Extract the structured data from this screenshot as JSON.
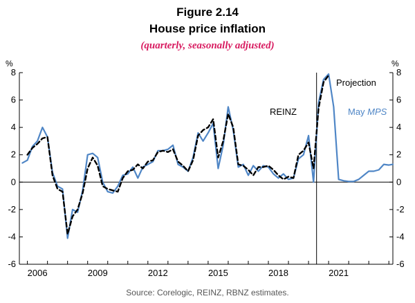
{
  "figure": {
    "label": "Figure 2.14",
    "title": "House price inflation",
    "subtitle": "(quarterly, seasonally adjusted)",
    "source": "Source: Corelogic, REINZ, RBNZ estimates."
  },
  "chart_data": {
    "type": "line",
    "ylabel_left": "%",
    "ylabel_right": "%",
    "ylim": [
      -6,
      8
    ],
    "yticks": [
      -6,
      -4,
      -2,
      0,
      2,
      4,
      6,
      8
    ],
    "xlim": [
      2005.6,
      2024.2
    ],
    "xticks": [
      2006,
      2009,
      2012,
      2015,
      2018,
      2021
    ],
    "grid": false,
    "projection_start": 2020.4,
    "annotations": {
      "projection": "Projection",
      "reinz": "REINZ",
      "mps": "May ",
      "mps_italic": "MPS"
    },
    "colors": {
      "mps_series": "#4f86c6",
      "reinz_series": "#000000",
      "subtitle": "#d81b60"
    },
    "series": [
      {
        "name": "May MPS",
        "style": "solid",
        "points": [
          [
            2005.75,
            1.4
          ],
          [
            2006.0,
            1.6
          ],
          [
            2006.25,
            2.6
          ],
          [
            2006.5,
            3.0
          ],
          [
            2006.75,
            4.0
          ],
          [
            2007.0,
            3.3
          ],
          [
            2007.25,
            0.7
          ],
          [
            2007.5,
            -0.3
          ],
          [
            2007.75,
            -0.5
          ],
          [
            2008.0,
            -4.1
          ],
          [
            2008.25,
            -2.0
          ],
          [
            2008.5,
            -2.2
          ],
          [
            2008.75,
            -0.6
          ],
          [
            2009.0,
            2.0
          ],
          [
            2009.25,
            2.1
          ],
          [
            2009.5,
            1.8
          ],
          [
            2009.75,
            0.0
          ],
          [
            2010.0,
            -0.7
          ],
          [
            2010.25,
            -0.8
          ],
          [
            2010.5,
            -0.3
          ],
          [
            2010.75,
            0.5
          ],
          [
            2011.0,
            0.6
          ],
          [
            2011.25,
            1.1
          ],
          [
            2011.5,
            0.3
          ],
          [
            2011.75,
            1.1
          ],
          [
            2012.0,
            1.3
          ],
          [
            2012.25,
            1.5
          ],
          [
            2012.5,
            2.3
          ],
          [
            2012.75,
            2.3
          ],
          [
            2013.0,
            2.4
          ],
          [
            2013.25,
            2.7
          ],
          [
            2013.5,
            1.3
          ],
          [
            2013.75,
            1.1
          ],
          [
            2014.0,
            0.8
          ],
          [
            2014.25,
            1.8
          ],
          [
            2014.5,
            3.6
          ],
          [
            2014.75,
            3.0
          ],
          [
            2015.0,
            3.6
          ],
          [
            2015.25,
            4.3
          ],
          [
            2015.5,
            1.0
          ],
          [
            2015.75,
            2.7
          ],
          [
            2016.0,
            5.5
          ],
          [
            2016.25,
            3.8
          ],
          [
            2016.5,
            1.1
          ],
          [
            2016.75,
            1.3
          ],
          [
            2017.0,
            0.5
          ],
          [
            2017.25,
            1.2
          ],
          [
            2017.5,
            0.8
          ],
          [
            2017.75,
            1.2
          ],
          [
            2018.0,
            1.1
          ],
          [
            2018.25,
            0.6
          ],
          [
            2018.5,
            0.3
          ],
          [
            2018.75,
            0.6
          ],
          [
            2019.0,
            0.2
          ],
          [
            2019.25,
            0.3
          ],
          [
            2019.5,
            1.7
          ],
          [
            2019.75,
            2.0
          ],
          [
            2020.0,
            3.4
          ],
          [
            2020.25,
            0.0
          ],
          [
            2020.5,
            5.8
          ],
          [
            2020.75,
            7.5
          ],
          [
            2021.0,
            7.9
          ],
          [
            2021.25,
            5.5
          ],
          [
            2021.5,
            0.2
          ],
          [
            2021.75,
            0.1
          ],
          [
            2022.0,
            0.05
          ],
          [
            2022.25,
            0.05
          ],
          [
            2022.5,
            0.2
          ],
          [
            2022.75,
            0.5
          ],
          [
            2023.0,
            0.8
          ],
          [
            2023.25,
            0.8
          ],
          [
            2023.5,
            0.9
          ],
          [
            2023.75,
            1.3
          ],
          [
            2024.0,
            1.25
          ],
          [
            2024.2,
            1.3
          ]
        ]
      },
      {
        "name": "REINZ",
        "style": "dashed",
        "points": [
          [
            2006.0,
            2.0
          ],
          [
            2006.25,
            2.5
          ],
          [
            2006.5,
            2.8
          ],
          [
            2006.75,
            3.2
          ],
          [
            2007.0,
            3.3
          ],
          [
            2007.25,
            0.5
          ],
          [
            2007.5,
            -0.5
          ],
          [
            2007.75,
            -0.7
          ],
          [
            2008.0,
            -3.8
          ],
          [
            2008.25,
            -2.5
          ],
          [
            2008.5,
            -2.0
          ],
          [
            2008.75,
            -0.8
          ],
          [
            2009.0,
            1.0
          ],
          [
            2009.25,
            1.8
          ],
          [
            2009.5,
            1.2
          ],
          [
            2009.75,
            -0.3
          ],
          [
            2010.0,
            -0.5
          ],
          [
            2010.25,
            -0.6
          ],
          [
            2010.5,
            -0.7
          ],
          [
            2010.75,
            0.3
          ],
          [
            2011.0,
            0.8
          ],
          [
            2011.25,
            0.9
          ],
          [
            2011.5,
            1.3
          ],
          [
            2011.75,
            1.0
          ],
          [
            2012.0,
            1.5
          ],
          [
            2012.25,
            1.6
          ],
          [
            2012.5,
            2.2
          ],
          [
            2012.75,
            2.3
          ],
          [
            2013.0,
            2.2
          ],
          [
            2013.25,
            2.4
          ],
          [
            2013.5,
            1.5
          ],
          [
            2013.75,
            1.2
          ],
          [
            2014.0,
            0.8
          ],
          [
            2014.25,
            1.6
          ],
          [
            2014.5,
            3.4
          ],
          [
            2014.75,
            3.8
          ],
          [
            2015.0,
            4.0
          ],
          [
            2015.25,
            4.6
          ],
          [
            2015.5,
            1.8
          ],
          [
            2015.75,
            3.0
          ],
          [
            2016.0,
            5.0
          ],
          [
            2016.25,
            4.0
          ],
          [
            2016.5,
            1.3
          ],
          [
            2016.75,
            1.2
          ],
          [
            2017.0,
            0.9
          ],
          [
            2017.25,
            0.5
          ],
          [
            2017.5,
            1.1
          ],
          [
            2017.75,
            1.1
          ],
          [
            2018.0,
            1.2
          ],
          [
            2018.25,
            0.9
          ],
          [
            2018.5,
            0.5
          ],
          [
            2018.75,
            0.2
          ],
          [
            2019.0,
            0.4
          ],
          [
            2019.25,
            0.3
          ],
          [
            2019.5,
            2.0
          ],
          [
            2019.75,
            2.3
          ],
          [
            2020.0,
            2.9
          ],
          [
            2020.25,
            1.0
          ],
          [
            2020.5,
            5.4
          ],
          [
            2020.75,
            7.3
          ],
          [
            2021.0,
            7.8
          ]
        ]
      }
    ]
  }
}
